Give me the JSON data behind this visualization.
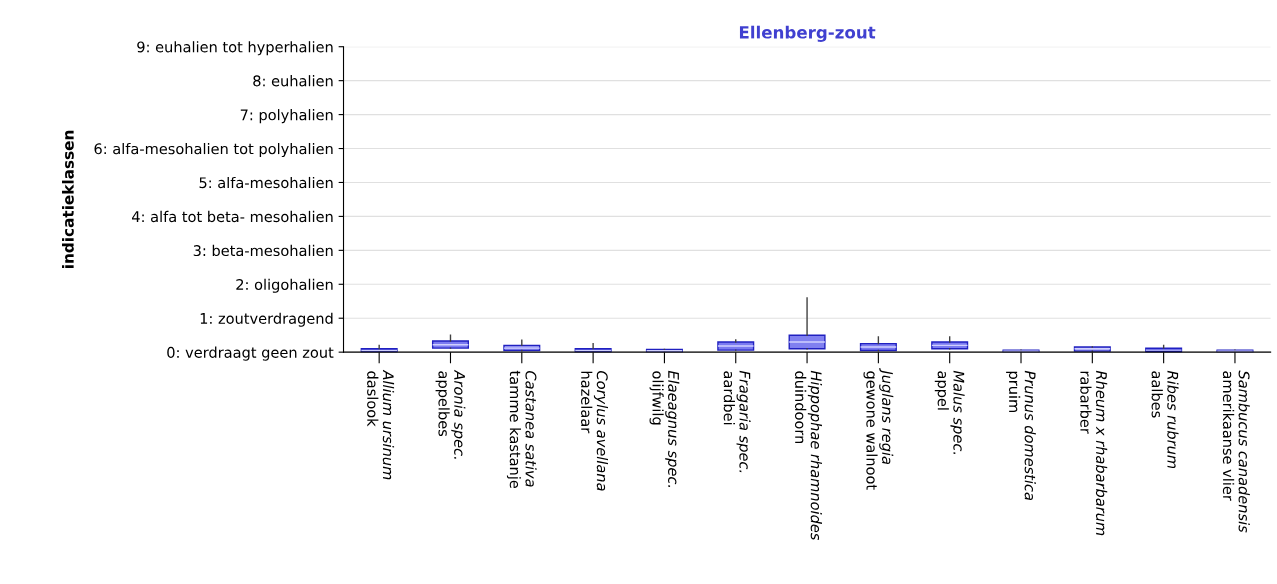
{
  "chart_data": {
    "type": "box",
    "title": "Ellenberg-zout",
    "ylabel": "indicatieklassen",
    "categories": [
      "Allium ursinum\ndaslook",
      "Aronia spec.\nappelbes",
      "Castanea sativa\ntamme kastanje",
      "Corylus avellana\nhazelaar",
      "Elaeagnus spec.\nolijfwilg",
      "Fragaria spec.\naardbei",
      "Hippophae rhamnoides\nduindoorn",
      "Juglans regia\ngewone walnoot",
      "Malus spec.\nappel",
      "Prunus domestica\npruim",
      "Rheum x rhabarbarum\nrabarber",
      "Ribes rubrum\naalbes",
      "Sambucus canadensis\namerikaanse vlier"
    ],
    "boxes": [
      {
        "low": 0,
        "q1": 0,
        "median": 0.05,
        "q3": 0.1,
        "high": 0.2
      },
      {
        "low": 0.12,
        "q1": 0.12,
        "median": 0.22,
        "q3": 0.33,
        "high": 0.5
      },
      {
        "low": 0.05,
        "q1": 0.05,
        "median": 0.12,
        "q3": 0.2,
        "high": 0.35
      },
      {
        "low": 0,
        "q1": 0,
        "median": 0.05,
        "q3": 0.1,
        "high": 0.25
      },
      {
        "low": 0,
        "q1": 0,
        "median": 0.04,
        "q3": 0.08,
        "high": 0.08
      },
      {
        "low": 0.06,
        "q1": 0.06,
        "median": 0.18,
        "q3": 0.3,
        "high": 0.36
      },
      {
        "low": 0.1,
        "q1": 0.1,
        "median": 0.3,
        "q3": 0.5,
        "high": 1.6
      },
      {
        "low": 0.05,
        "q1": 0.05,
        "median": 0.15,
        "q3": 0.25,
        "high": 0.45
      },
      {
        "low": 0.1,
        "q1": 0.1,
        "median": 0.2,
        "q3": 0.3,
        "high": 0.45
      },
      {
        "low": 0,
        "q1": 0,
        "median": 0.03,
        "q3": 0.06,
        "high": 0.06
      },
      {
        "low": 0.03,
        "q1": 0.03,
        "median": 0.1,
        "q3": 0.15,
        "high": 0.15
      },
      {
        "low": 0,
        "q1": 0,
        "median": 0.06,
        "q3": 0.12,
        "high": 0.2
      },
      {
        "low": 0,
        "q1": 0,
        "median": 0.03,
        "q3": 0.06,
        "high": 0.06
      }
    ],
    "colors": [
      "#1a1ad0",
      "#7b7bf0",
      "#8c8cf0",
      "#1a1ad0",
      "#7b7bf0",
      "#7b7bf0",
      "#8080f0",
      "#7b7bf0",
      "#7b7bf0",
      "#8c8cf0",
      "#9a9af0",
      "#1a1ad0",
      "#8c8cf0"
    ],
    "ylim": [
      0,
      9
    ],
    "yticks": [
      {
        "value": 0,
        "label": "0: verdraagt geen zout"
      },
      {
        "value": 1,
        "label": "1: zoutverdragend"
      },
      {
        "value": 2,
        "label": "2: oligohalien"
      },
      {
        "value": 3,
        "label": "3: beta-mesohalien"
      },
      {
        "value": 4,
        "label": "4: alfa tot beta- mesohalien"
      },
      {
        "value": 5,
        "label": "5: alfa-mesohalien"
      },
      {
        "value": 6,
        "label": "6: alfa-mesohalien tot polyhalien"
      },
      {
        "value": 7,
        "label": "7: polyhalien"
      },
      {
        "value": 8,
        "label": "8: euhalien"
      },
      {
        "value": 9,
        "label": "9: euhalien tot hyperhalien"
      }
    ],
    "grid": "y"
  }
}
